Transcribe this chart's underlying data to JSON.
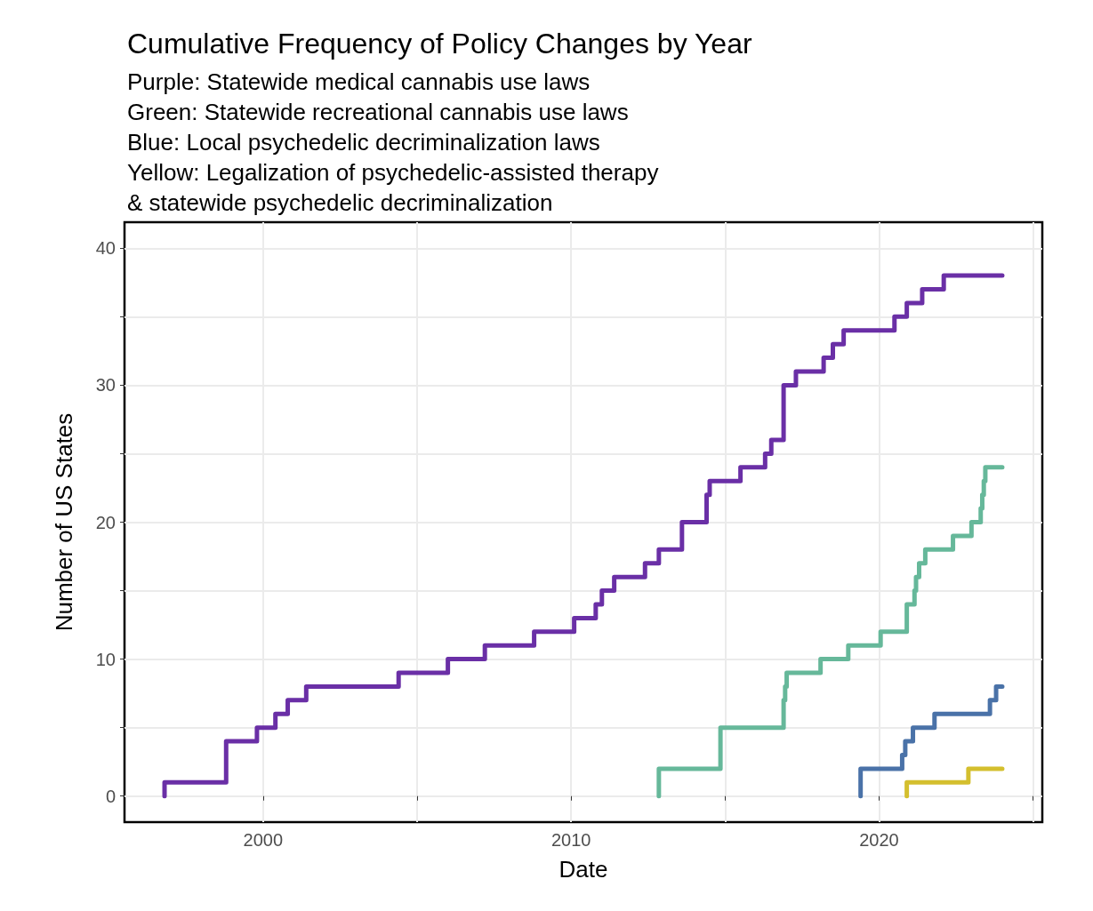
{
  "chart_data": {
    "type": "step",
    "title": "Cumulative Frequency of Policy Changes by Year",
    "subtitle": "Purple: Statewide medical cannabis use laws\nGreen: Statewide recreational cannabis use laws\nBlue: Local psychedelic decriminalization laws\nYellow: Legalization of psychedelic-assisted therapy\n& statewide psychedelic decriminalization",
    "xlabel": "Date",
    "ylabel": "Number of US States",
    "series": [
      {
        "color": "#6a2fa6",
        "x": [
          1996.8,
          1996.8,
          1998.8,
          1999.8,
          2000.4,
          2000.8,
          2001.4,
          2004.4,
          2006.0,
          2007.2,
          2008.8,
          2010.1,
          2010.8,
          2011.0,
          2011.4,
          2012.4,
          2012.85,
          2013.6,
          2014.4,
          2014.5,
          2015.5,
          2016.3,
          2016.5,
          2016.9,
          2017.3,
          2018.2,
          2018.5,
          2018.85,
          2020.5,
          2020.9,
          2021.4,
          2022.1,
          2024.0
        ],
        "values": [
          0,
          1,
          4,
          5,
          6,
          7,
          8,
          9,
          10,
          11,
          12,
          13,
          14,
          15,
          16,
          17,
          18,
          20,
          22,
          23,
          24,
          25,
          26,
          30,
          31,
          32,
          33,
          34,
          35,
          36,
          37,
          38,
          38
        ]
      },
      {
        "color": "#66b89a",
        "x": [
          2012.85,
          2012.85,
          2014.85,
          2016.9,
          2016.95,
          2017.0,
          2018.1,
          2019.0,
          2020.05,
          2020.9,
          2021.15,
          2021.2,
          2021.3,
          2021.5,
          2022.4,
          2023.0,
          2023.3,
          2023.35,
          2023.4,
          2023.45,
          2024.0
        ],
        "values": [
          0,
          2,
          5,
          7,
          8,
          9,
          10,
          11,
          12,
          14,
          15,
          16,
          17,
          18,
          19,
          20,
          21,
          22,
          23,
          24,
          24
        ]
      },
      {
        "color": "#4a72a8",
        "x": [
          2019.4,
          2019.4,
          2020.75,
          2020.85,
          2021.1,
          2021.8,
          2023.6,
          2023.8,
          2024.0
        ],
        "values": [
          0,
          2,
          3,
          4,
          5,
          6,
          7,
          8,
          8
        ]
      },
      {
        "color": "#d4bf2e",
        "x": [
          2020.9,
          2020.9,
          2022.9,
          2024.0
        ],
        "values": [
          0,
          1,
          2,
          2
        ]
      }
    ],
    "xlim": [
      1995.5,
      2025.3
    ],
    "xticks": [
      2000,
      {
        "value": 2005,
        "label": null
      },
      2010,
      {
        "value": 2015,
        "label": null
      },
      2020,
      {
        "value": 2025,
        "label": null
      }
    ],
    "ylim": [
      -1.9,
      41.9
    ],
    "yticks": [
      0,
      {
        "value": 5,
        "label": null
      },
      10,
      {
        "value": 15,
        "label": null
      },
      20,
      {
        "value": 25,
        "label": null
      },
      30,
      {
        "value": 35,
        "label": null
      },
      40
    ],
    "grid": true,
    "line_style": "solid",
    "marker": "none"
  }
}
